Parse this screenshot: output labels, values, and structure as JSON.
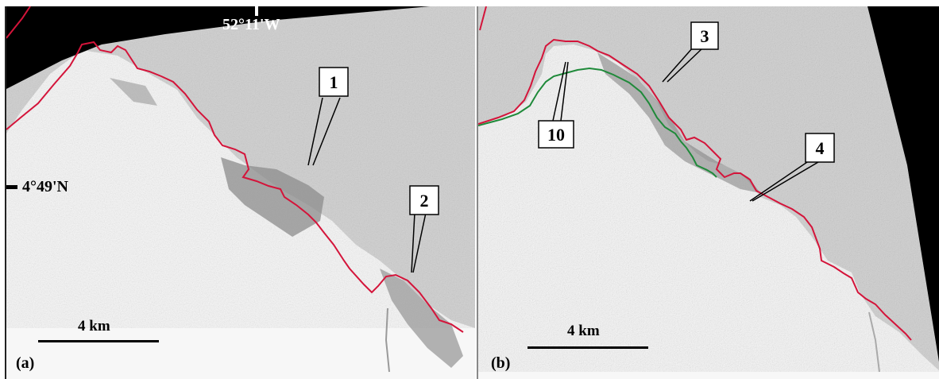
{
  "panels": [
    {
      "tag": "(a)",
      "scale_label": "4 km",
      "top_coordinate": "52°11'W",
      "left_coordinate": "4°49'N",
      "callouts": [
        "1",
        "2"
      ]
    },
    {
      "tag": "(b)",
      "scale_label": "4 km",
      "callouts": [
        "3",
        "4",
        "10"
      ]
    }
  ],
  "colors": {
    "coastline_detected": "#d4143a",
    "coastline_reference": "#1f8a3a",
    "nodata_background": "#000000",
    "sea_texture": "#9a9a9a",
    "land": "#f7f7f7"
  }
}
